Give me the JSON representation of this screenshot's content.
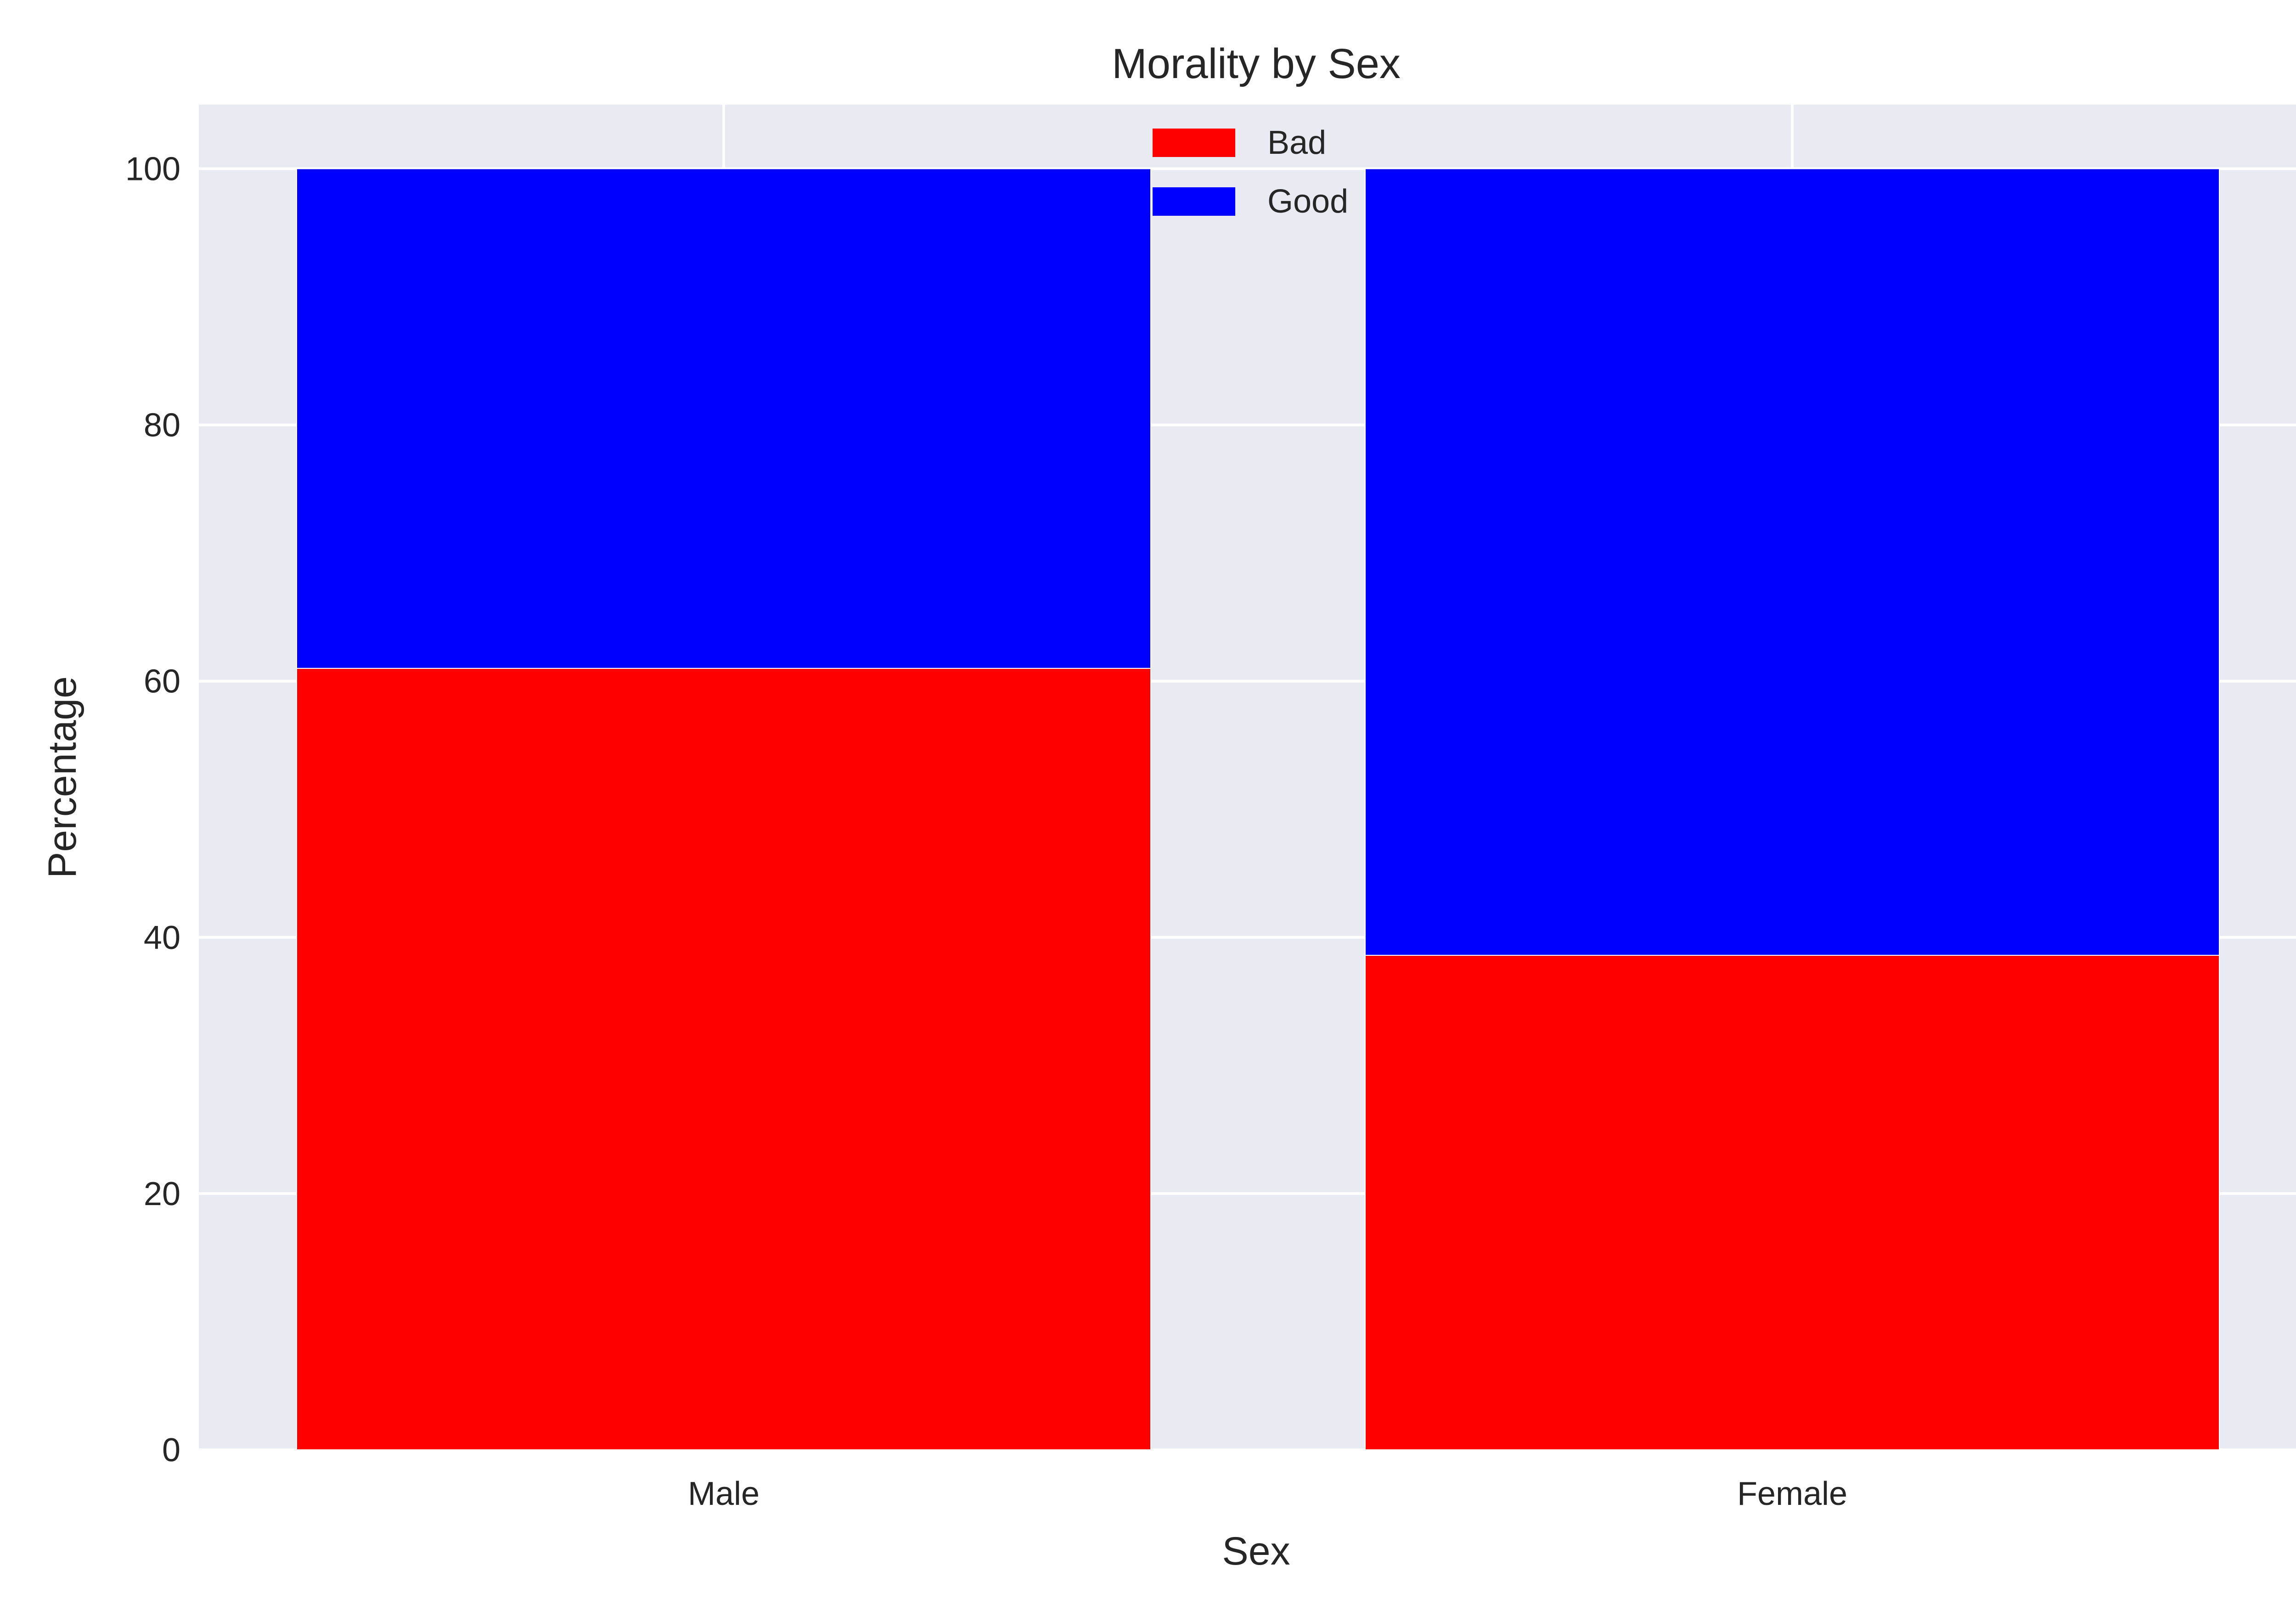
{
  "chart_data": {
    "type": "bar",
    "stacked": true,
    "title": "Morality by Sex",
    "xlabel": "Sex",
    "ylabel": "Percentage",
    "categories": [
      "Male",
      "Female"
    ],
    "series": [
      {
        "name": "Bad",
        "color": "#FF0000",
        "values": [
          61.0,
          38.6
        ]
      },
      {
        "name": "Good",
        "color": "#0000FF",
        "values": [
          39.0,
          61.4
        ]
      }
    ],
    "ylim": [
      0,
      105
    ],
    "yticks": [
      0,
      20,
      40,
      60,
      80,
      100
    ],
    "grid": true,
    "legend_position": "upper-center",
    "background_color": "#EAEAF2"
  }
}
